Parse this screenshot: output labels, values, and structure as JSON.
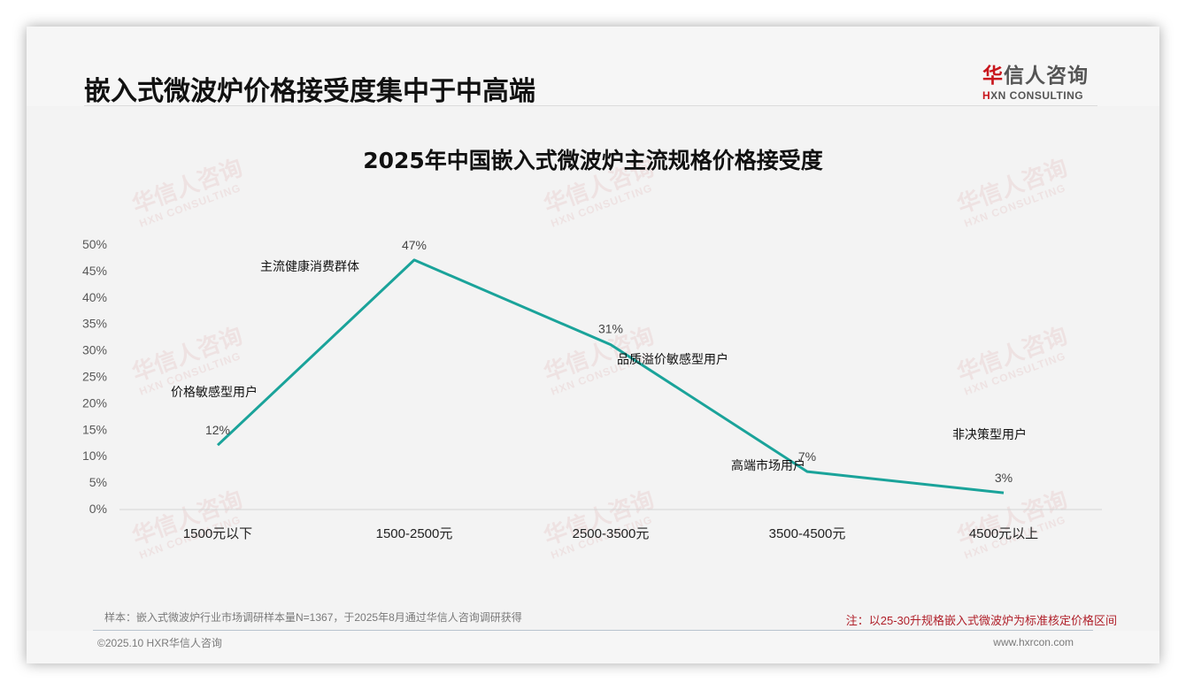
{
  "header": {
    "title": "嵌入式微波炉价格接受度集中于中高端",
    "logo": {
      "cn_first": "华",
      "cn_rest": "信人咨询",
      "en_first": "H",
      "en_rest": "XN CONSULTING"
    }
  },
  "watermark": {
    "cn": "华信人咨询",
    "en": "HXN CONSULTING"
  },
  "chart_data": {
    "type": "line",
    "title": "2025年中国嵌入式微波炉主流规格价格接受度",
    "xlabel": "",
    "ylabel": "",
    "categories": [
      "1500元以下",
      "1500-2500元",
      "2500-3500元",
      "3500-4500元",
      "4500元以上"
    ],
    "values": [
      12,
      47,
      31,
      7,
      3
    ],
    "value_labels": [
      "12%",
      "47%",
      "31%",
      "7%",
      "3%"
    ],
    "annotations": [
      "价格敏感型用户",
      "主流健康消费群体",
      "品质溢价敏感型用户",
      "高端市场用户",
      "非决策型用户"
    ],
    "yticks": [
      "0%",
      "5%",
      "10%",
      "15%",
      "20%",
      "25%",
      "30%",
      "35%",
      "40%",
      "45%",
      "50%"
    ],
    "ylim": [
      0,
      50
    ],
    "grid": false,
    "legend": null,
    "line_color": "#1aa39a"
  },
  "footer": {
    "sample_note": "样本：嵌入式微波炉行业市场调研样本量N=1367，于2025年8月通过华信人咨询调研获得",
    "spec_note": "注：以25-30升规格嵌入式微波炉为标准核定价格区间",
    "copyright": "©2025.10 HXR华信人咨询",
    "website": "www.hxrcon.com"
  }
}
